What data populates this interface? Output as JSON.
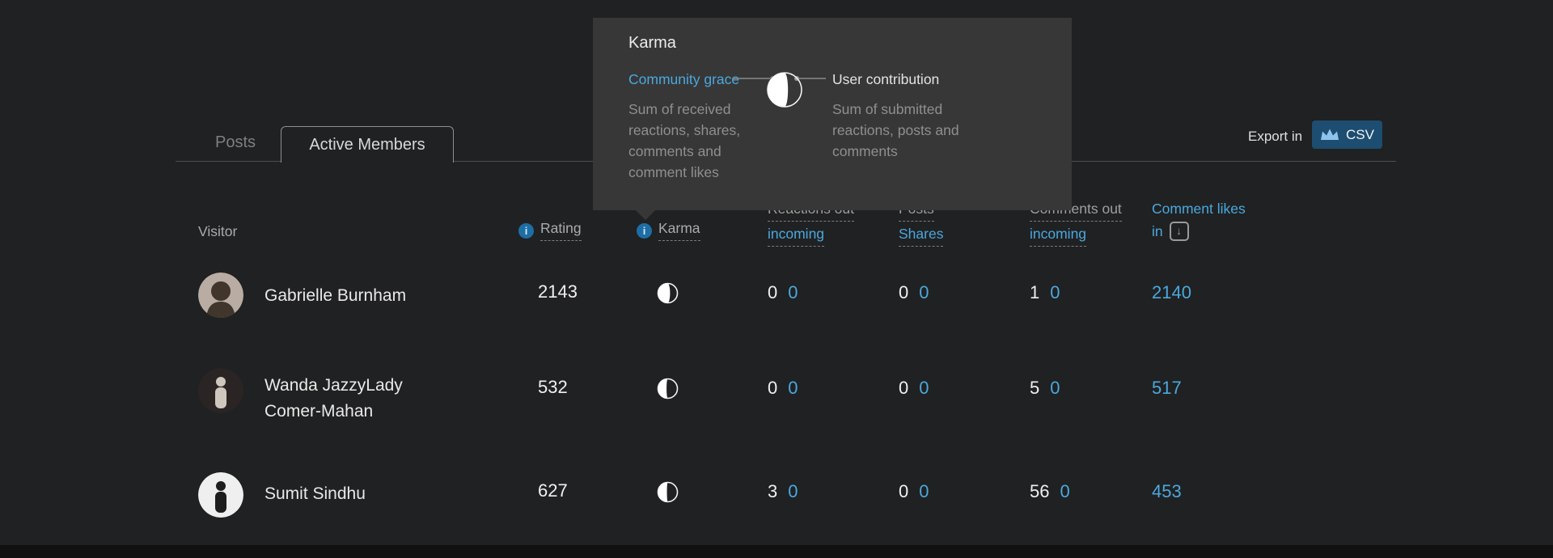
{
  "page": {
    "background": "#202122",
    "accent_blue": "#4aa8de",
    "tooltip_bg": "#373737",
    "csv_button_bg": "#1d4d70"
  },
  "tabs": {
    "posts": "Posts",
    "active_members": "Active Members"
  },
  "export": {
    "label": "Export in",
    "button": "CSV"
  },
  "icons": {
    "info_glyph": "i",
    "sort_glyph": "↓",
    "crown_color": "#8dc4ee"
  },
  "tooltip": {
    "title": "Karma",
    "left_label": "Community grace",
    "right_label": "User contribution",
    "left_desc": "Sum of received reactions, shares, comments and comment likes",
    "right_desc": "Sum of submitted reactions, posts and comments",
    "moon_phase": 0.6
  },
  "table": {
    "headers": {
      "visitor": "Visitor",
      "rating": "Rating",
      "karma": "Karma",
      "reactions_line1": "Reactions out",
      "reactions_line2": "incoming",
      "posts_line1": "Posts",
      "posts_line2": "Shares",
      "comments_line1": "Comments out",
      "comments_line2": "incoming",
      "likes_line1": "Comment likes",
      "likes_line2": "in"
    },
    "rows": [
      {
        "name": "Gabrielle Burnham",
        "rating": "2143",
        "karma_phase": 0.62,
        "reactions": [
          "0",
          "0"
        ],
        "posts": [
          "0",
          "0"
        ],
        "comments": [
          "1",
          "0"
        ],
        "comment_likes_in": "2140",
        "avatar": {
          "bg": "#b9ada3",
          "fg": "#41362c",
          "variant": "bust"
        }
      },
      {
        "name": "Wanda JazzyLady Comer-Mahan",
        "rating": "532",
        "karma_phase": 0.44,
        "reactions": [
          "0",
          "0"
        ],
        "posts": [
          "0",
          "0"
        ],
        "comments": [
          "5",
          "0"
        ],
        "comment_likes_in": "517",
        "avatar": {
          "bg": "#2a2424",
          "fg": "#cfc6bd",
          "variant": "figure"
        }
      },
      {
        "name": "Sumit Sindhu",
        "rating": "627",
        "karma_phase": 0.46,
        "reactions": [
          "3",
          "0"
        ],
        "posts": [
          "0",
          "0"
        ],
        "comments": [
          "56",
          "0"
        ],
        "comment_likes_in": "453",
        "avatar": {
          "bg": "#efefef",
          "fg": "#1e1e1e",
          "variant": "figure"
        }
      }
    ]
  }
}
